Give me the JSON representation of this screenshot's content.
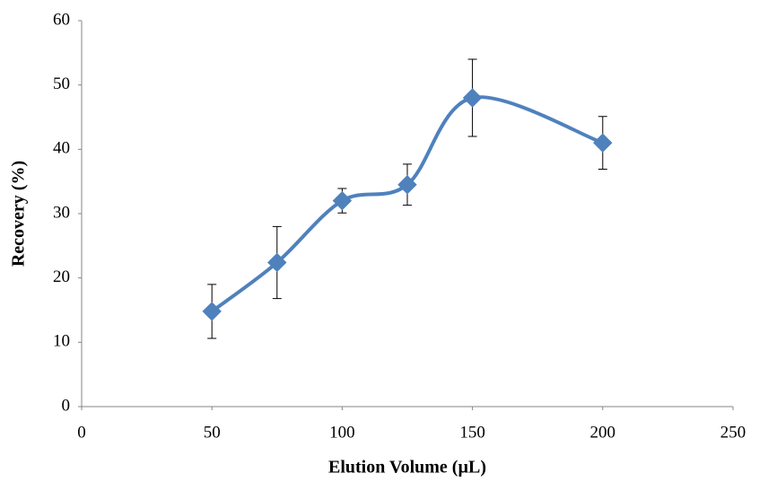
{
  "chart_data": {
    "type": "scatter",
    "smooth": true,
    "x_label": "Elution Volume (µL)",
    "y_label": "Recovery (%)",
    "x": [
      50,
      75,
      100,
      125,
      150,
      200
    ],
    "series": [
      {
        "color": "#4f81bd",
        "values": [
          14.8,
          22.4,
          32,
          34.5,
          48,
          41
        ],
        "errors": [
          4.2,
          5.6,
          1.9,
          3.2,
          6,
          4.1
        ]
      }
    ],
    "xlim": [
      0,
      250
    ],
    "xticks": [
      0,
      50,
      100,
      150,
      200,
      250
    ],
    "ylim": [
      0,
      60
    ],
    "yticks": [
      0,
      10,
      20,
      30,
      40,
      50,
      60
    ],
    "grid": false
  }
}
